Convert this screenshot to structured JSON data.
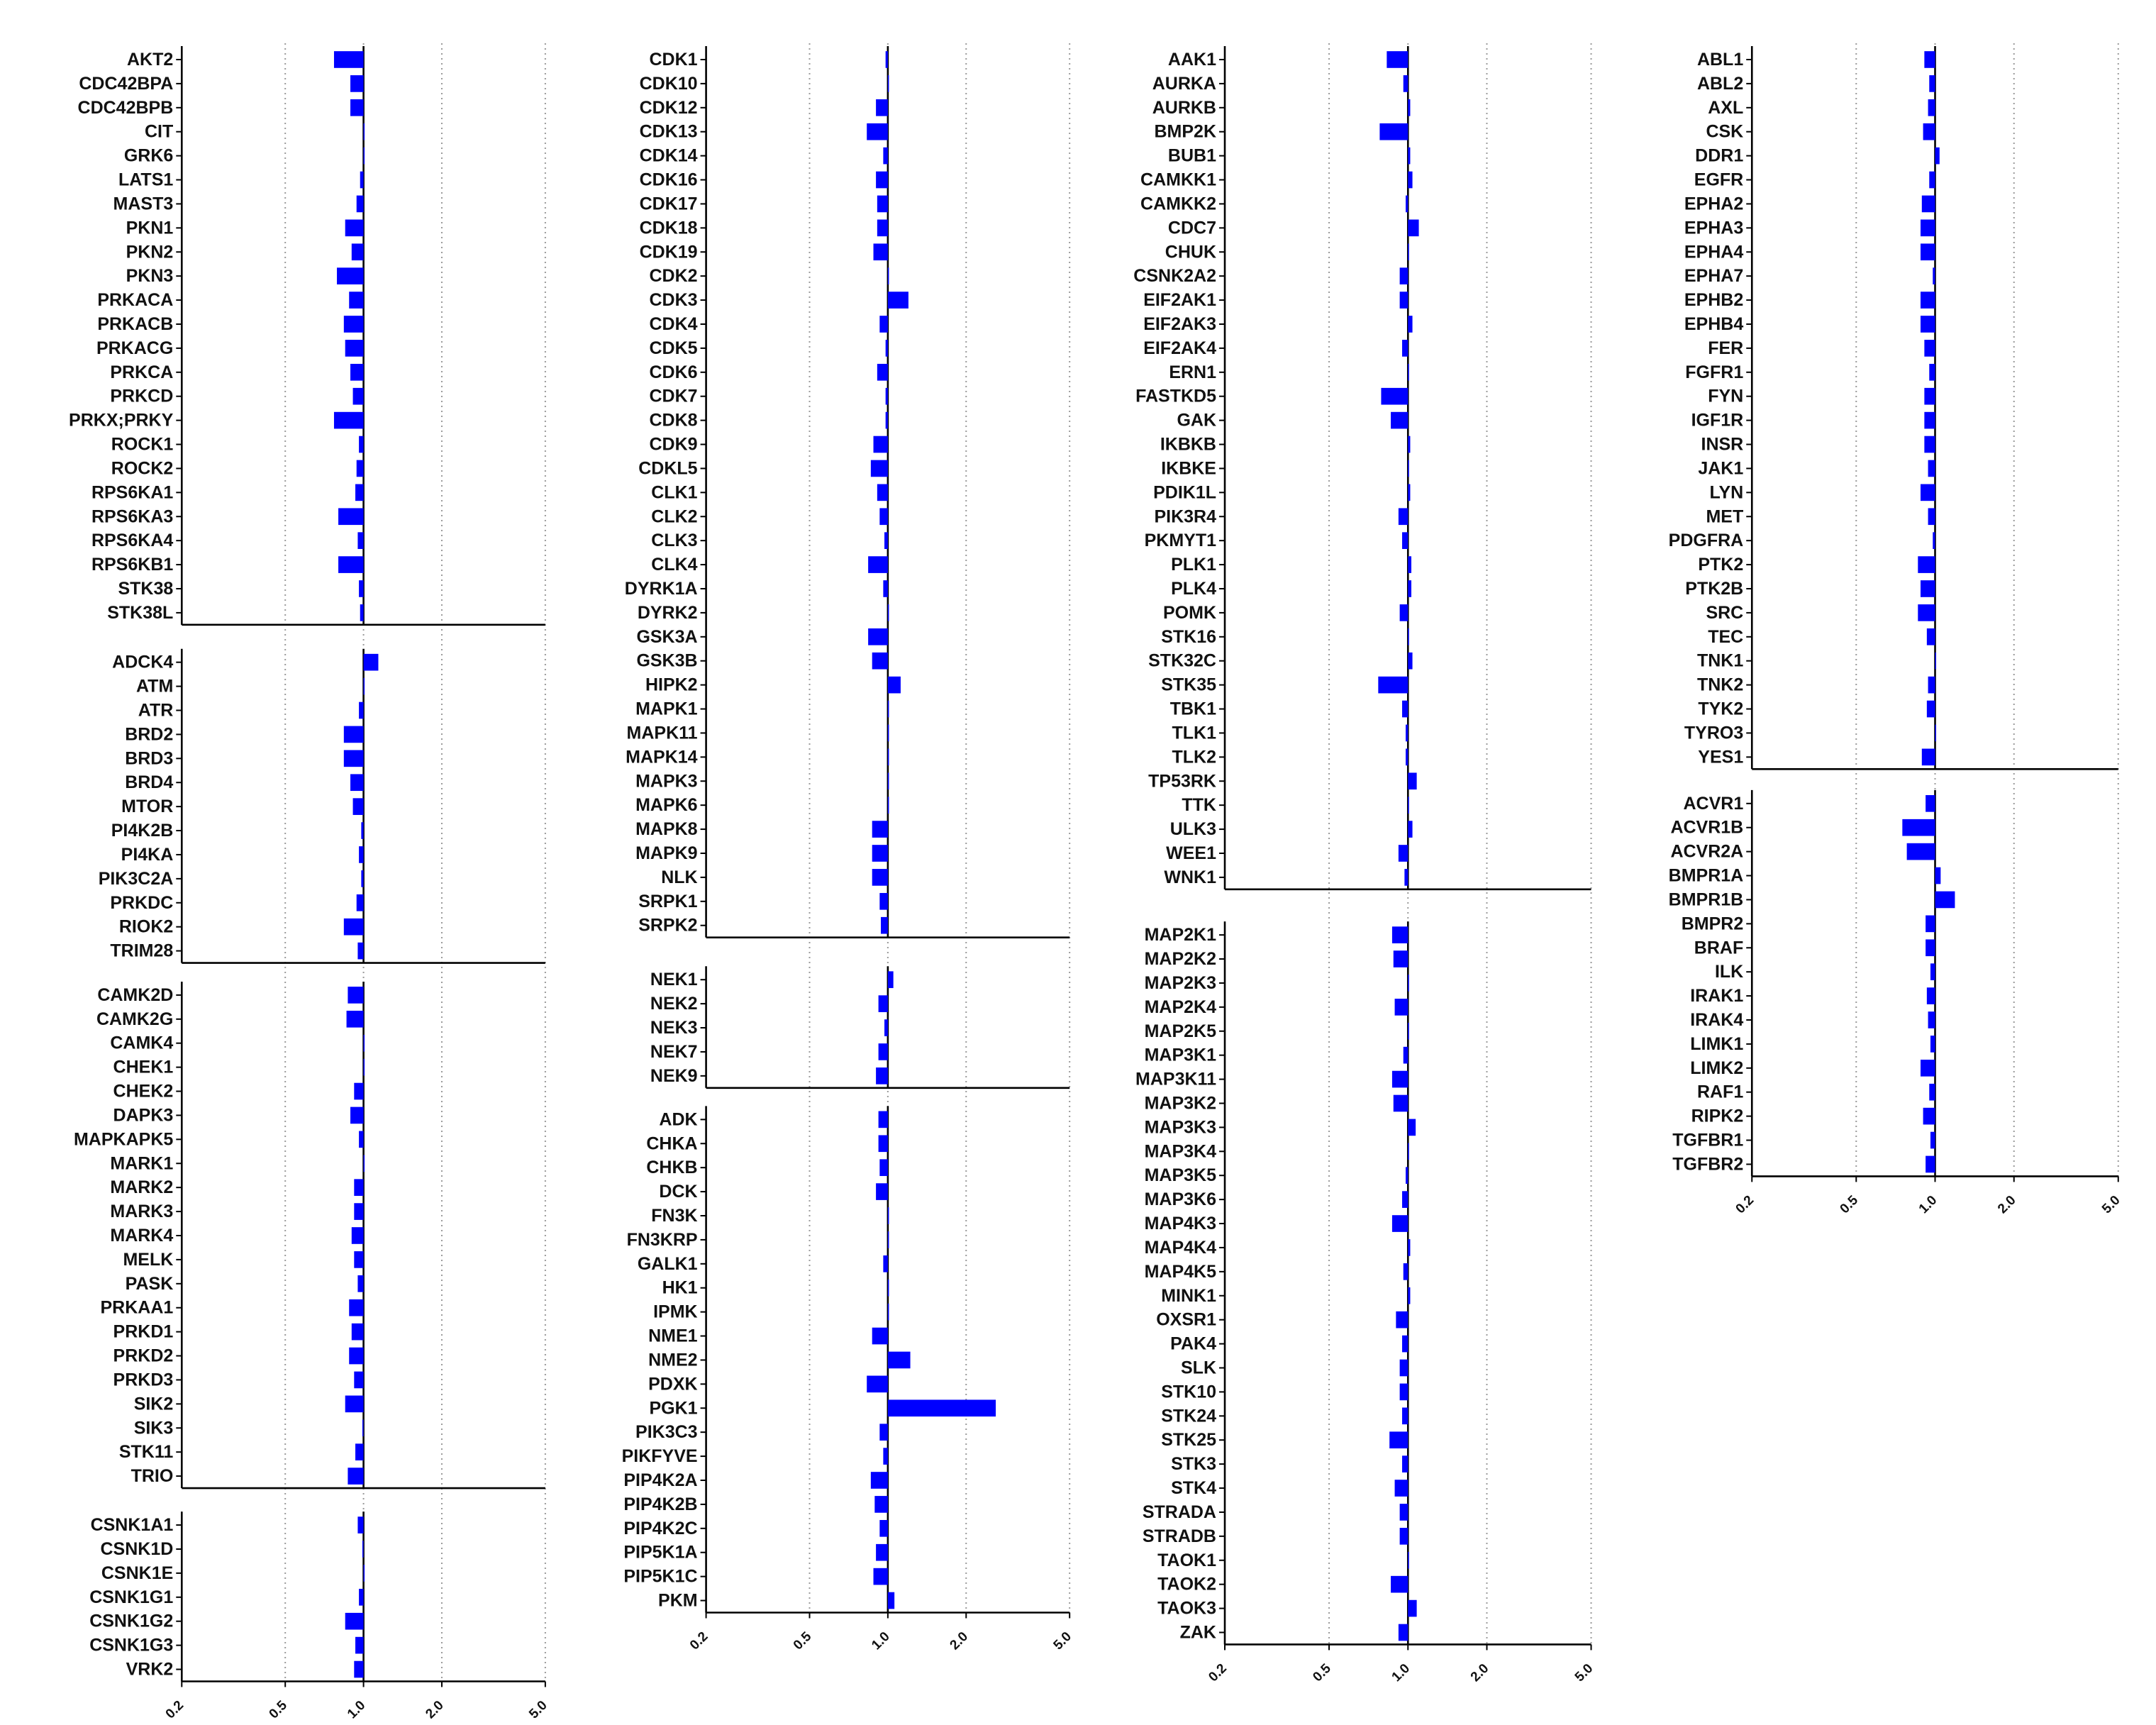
{
  "chart_data": {
    "type": "bar",
    "orientation": "horizontal",
    "scale": "log",
    "xlim": [
      0.2,
      5.0
    ],
    "xticks": [
      "0.2",
      "0.5",
      "1.0",
      "2.0",
      "5.0"
    ],
    "xtick_values": [
      0.2,
      0.5,
      1.0,
      2.0,
      5.0
    ],
    "reference_value": 1.0,
    "grid": "vertical-dotted",
    "bar_color": "#0000ff",
    "columns": [
      {
        "panels": [
          {
            "categories": [
              "AKT2",
              "CDC42BPA",
              "CDC42BPB",
              "CIT",
              "GRK6",
              "LATS1",
              "MAST3",
              "PKN1",
              "PKN2",
              "PKN3",
              "PRKACA",
              "PRKACB",
              "PRKACG",
              "PRKCA",
              "PRKCD",
              "PRKX;PRKY",
              "ROCK1",
              "ROCK2",
              "RPS6KA1",
              "RPS6KA3",
              "RPS6KA4",
              "RPS6KB1",
              "STK38",
              "STK38L"
            ],
            "values": [
              0.77,
              0.89,
              0.89,
              1.0,
              1.0,
              0.97,
              0.94,
              0.85,
              0.9,
              0.79,
              0.88,
              0.84,
              0.85,
              0.89,
              0.91,
              0.77,
              0.96,
              0.94,
              0.93,
              0.8,
              0.95,
              0.8,
              0.96,
              0.97
            ]
          },
          {
            "categories": [
              "ADCK4",
              "ATM",
              "ATR",
              "BRD2",
              "BRD3",
              "BRD4",
              "MTOR",
              "PI4K2B",
              "PI4KA",
              "PIK3C2A",
              "PRKDC",
              "RIOK2",
              "TRIM28"
            ],
            "values": [
              1.14,
              1.0,
              0.96,
              0.84,
              0.84,
              0.89,
              0.91,
              0.98,
              0.96,
              0.98,
              0.94,
              0.84,
              0.95
            ]
          },
          {
            "categories": [
              "CAMK2D",
              "CAMK2G",
              "CAMK4",
              "CHEK1",
              "CHEK2",
              "DAPK3",
              "MAPKAPK5",
              "MARK1",
              "MARK2",
              "MARK3",
              "MARK4",
              "MELK",
              "PASK",
              "PRKAA1",
              "PRKD1",
              "PRKD2",
              "PRKD3",
              "SIK2",
              "SIK3",
              "STK11",
              "TRIO"
            ],
            "values": [
              0.87,
              0.86,
              1.0,
              1.0,
              0.92,
              0.89,
              0.96,
              1.0,
              0.92,
              0.92,
              0.9,
              0.92,
              0.95,
              0.88,
              0.9,
              0.88,
              0.92,
              0.85,
              0.99,
              0.93,
              0.87
            ]
          },
          {
            "categories": [
              "CSNK1A1",
              "CSNK1D",
              "CSNK1E",
              "CSNK1G1",
              "CSNK1G2",
              "CSNK1G3",
              "VRK2"
            ],
            "values": [
              0.95,
              0.99,
              1.0,
              0.96,
              0.85,
              0.93,
              0.92
            ]
          }
        ]
      },
      {
        "panels": [
          {
            "categories": [
              "CDK1",
              "CDK10",
              "CDK12",
              "CDK13",
              "CDK14",
              "CDK16",
              "CDK17",
              "CDK18",
              "CDK19",
              "CDK2",
              "CDK3",
              "CDK4",
              "CDK5",
              "CDK6",
              "CDK7",
              "CDK8",
              "CDK9",
              "CDKL5",
              "CLK1",
              "CLK2",
              "CLK3",
              "CLK4",
              "DYRK1A",
              "DYRK2",
              "GSK3A",
              "GSK3B",
              "HIPK2",
              "MAPK1",
              "MAPK11",
              "MAPK14",
              "MAPK3",
              "MAPK6",
              "MAPK8",
              "MAPK9",
              "NLK",
              "SRPK1",
              "SRPK2"
            ],
            "values": [
              0.98,
              1.0,
              0.9,
              0.83,
              0.96,
              0.9,
              0.91,
              0.91,
              0.88,
              1.0,
              1.2,
              0.93,
              0.98,
              0.91,
              0.98,
              0.98,
              0.88,
              0.86,
              0.91,
              0.93,
              0.97,
              0.84,
              0.96,
              1.0,
              0.84,
              0.87,
              1.12,
              1.0,
              1.0,
              1.0,
              1.0,
              1.0,
              0.87,
              0.87,
              0.87,
              0.93,
              0.94
            ]
          },
          {
            "categories": [
              "NEK1",
              "NEK2",
              "NEK3",
              "NEK7",
              "NEK9"
            ],
            "values": [
              1.05,
              0.92,
              0.97,
              0.92,
              0.9
            ]
          },
          {
            "categories": [
              "ADK",
              "CHKA",
              "CHKB",
              "DCK",
              "FN3K",
              "FN3KRP",
              "GALK1",
              "HK1",
              "IPMK",
              "NME1",
              "NME2",
              "PDXK",
              "PGK1",
              "PIK3C3",
              "PIKFYVE",
              "PIP4K2A",
              "PIP4K2B",
              "PIP4K2C",
              "PIP5K1A",
              "PIP5K1C",
              "PKM"
            ],
            "values": [
              0.92,
              0.92,
              0.93,
              0.9,
              1.0,
              1.0,
              0.96,
              1.0,
              1.0,
              0.87,
              1.22,
              0.83,
              2.6,
              0.93,
              0.96,
              0.86,
              0.89,
              0.93,
              0.9,
              0.88,
              1.06
            ]
          }
        ]
      },
      {
        "panels": [
          {
            "categories": [
              "AAK1",
              "AURKA",
              "AURKB",
              "BMP2K",
              "BUB1",
              "CAMKK1",
              "CAMKK2",
              "CDC7",
              "CHUK",
              "CSNK2A2",
              "EIF2AK1",
              "EIF2AK3",
              "EIF2AK4",
              "ERN1",
              "FASTKD5",
              "GAK",
              "IKBKB",
              "IKBKE",
              "PDIK1L",
              "PIK3R4",
              "PKMYT1",
              "PLK1",
              "PLK4",
              "POMK",
              "STK16",
              "STK32C",
              "STK35",
              "TBK1",
              "TLK1",
              "TLK2",
              "TP53RK",
              "TTK",
              "ULK3",
              "WEE1",
              "WNK1"
            ],
            "values": [
              0.83,
              0.96,
              1.02,
              0.78,
              1.02,
              1.04,
              0.98,
              1.1,
              1.0,
              0.93,
              0.93,
              1.04,
              0.95,
              1.0,
              0.79,
              0.86,
              1.02,
              1.0,
              1.02,
              0.92,
              0.95,
              1.03,
              1.03,
              0.93,
              1.0,
              1.04,
              0.77,
              0.95,
              0.98,
              0.98,
              1.08,
              1.0,
              1.04,
              0.92,
              0.97
            ]
          },
          {
            "categories": [
              "MAP2K1",
              "MAP2K2",
              "MAP2K3",
              "MAP2K4",
              "MAP2K5",
              "MAP3K1",
              "MAP3K11",
              "MAP3K2",
              "MAP3K3",
              "MAP3K4",
              "MAP3K5",
              "MAP3K6",
              "MAP4K3",
              "MAP4K4",
              "MAP4K5",
              "MINK1",
              "OXSR1",
              "PAK4",
              "SLK",
              "STK10",
              "STK24",
              "STK25",
              "STK3",
              "STK4",
              "STRADA",
              "STRADB",
              "TAOK1",
              "TAOK2",
              "TAOK3",
              "ZAK"
            ],
            "values": [
              0.87,
              0.88,
              1.0,
              0.89,
              1.0,
              0.96,
              0.87,
              0.88,
              1.07,
              1.0,
              0.98,
              0.95,
              0.87,
              1.02,
              0.96,
              1.02,
              0.9,
              0.95,
              0.93,
              0.93,
              0.95,
              0.85,
              0.95,
              0.89,
              0.93,
              0.93,
              1.0,
              0.86,
              1.08,
              0.92
            ]
          }
        ]
      },
      {
        "panels": [
          {
            "categories": [
              "ABL1",
              "ABL2",
              "AXL",
              "CSK",
              "DDR1",
              "EGFR",
              "EPHA2",
              "EPHA3",
              "EPHA4",
              "EPHA7",
              "EPHB2",
              "EPHB4",
              "FER",
              "FGFR1",
              "FYN",
              "IGF1R",
              "INSR",
              "JAK1",
              "LYN",
              "MET",
              "PDGFRA",
              "PTK2",
              "PTK2B",
              "SRC",
              "TEC",
              "TNK1",
              "TNK2",
              "TYK2",
              "TYRO3",
              "YES1"
            ],
            "values": [
              0.91,
              0.95,
              0.94,
              0.9,
              1.04,
              0.95,
              0.89,
              0.88,
              0.88,
              0.98,
              0.88,
              0.88,
              0.91,
              0.95,
              0.91,
              0.91,
              0.91,
              0.94,
              0.88,
              0.94,
              0.98,
              0.86,
              0.88,
              0.86,
              0.93,
              1.0,
              0.94,
              0.93,
              1.0,
              0.89
            ]
          },
          {
            "categories": [
              "ACVR1",
              "ACVR1B",
              "ACVR2A",
              "BMPR1A",
              "BMPR1B",
              "BMPR2",
              "BRAF",
              "ILK",
              "IRAK1",
              "IRAK4",
              "LIMK1",
              "LIMK2",
              "RAF1",
              "RIPK2",
              "TGFBR1",
              "TGFBR2"
            ],
            "values": [
              0.92,
              0.75,
              0.78,
              1.05,
              1.19,
              0.92,
              0.92,
              0.96,
              0.93,
              0.94,
              0.96,
              0.88,
              0.95,
              0.9,
              0.96,
              0.92
            ]
          }
        ]
      }
    ]
  }
}
